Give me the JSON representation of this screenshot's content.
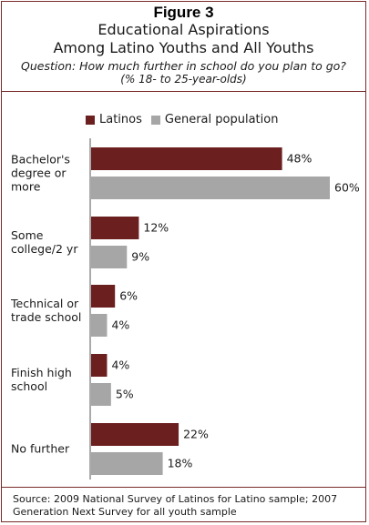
{
  "header": {
    "figure_label": "Figure 3",
    "title_line1": "Educational Aspirations",
    "title_line2": "Among Latino Youths and All Youths",
    "question": "Question: How much further in school do you plan to go?",
    "subquestion": "(% 18- to 25-year-olds)"
  },
  "legend": {
    "items": [
      {
        "label": "Latinos",
        "color": "#6b1f1f"
      },
      {
        "label": "General population",
        "color": "#a6a6a6"
      }
    ]
  },
  "chart_data": {
    "type": "bar",
    "orientation": "horizontal",
    "categories": [
      [
        "Bachelor's",
        "degree or",
        "more"
      ],
      [
        "Some",
        "college/2 yr"
      ],
      [
        "Technical or",
        "trade school"
      ],
      [
        "Finish high",
        "school"
      ],
      [
        "No further"
      ]
    ],
    "series": [
      {
        "name": "Latinos",
        "color": "#6b1f1f",
        "values": [
          48,
          12,
          6,
          4,
          22
        ],
        "labels": [
          "48%",
          "12%",
          "6%",
          "4%",
          "22%"
        ]
      },
      {
        "name": "General population",
        "color": "#a6a6a6",
        "values": [
          60,
          9,
          4,
          5,
          18
        ],
        "labels": [
          "60%",
          "9%",
          "4%",
          "5%",
          "18%"
        ]
      }
    ],
    "xlim": [
      0,
      60
    ],
    "grid": false,
    "legend_position": "top"
  },
  "footer": {
    "source": "Source: 2009 National Survey of Latinos for Latino sample; 2007 Generation Next Survey for all youth sample"
  }
}
